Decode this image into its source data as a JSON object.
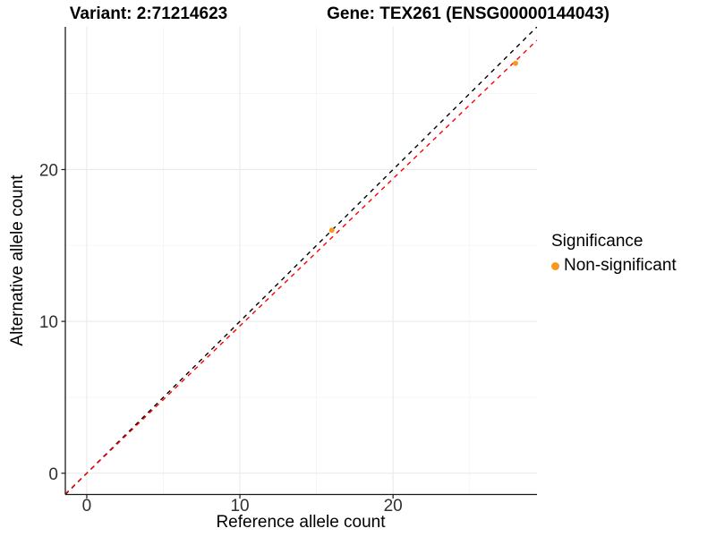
{
  "chart_data": {
    "type": "scatter",
    "title_left": "Variant: 2:71214623",
    "title_right": "Gene: TEX261 (ENSG00000144043)",
    "xlabel": "Reference allele count",
    "ylabel": "Alternative allele count",
    "xlim": [
      -1.4,
      29.4
    ],
    "ylim": [
      -1.4,
      29.4
    ],
    "x_ticks": [
      0,
      10,
      20
    ],
    "y_ticks": [
      0,
      10,
      20
    ],
    "x_minor_ticks": [
      5,
      15,
      25
    ],
    "y_minor_ticks": [
      5,
      15,
      25
    ],
    "grid": true,
    "points": [
      {
        "x": 16,
        "y": 16,
        "series": "Non-significant"
      },
      {
        "x": 28,
        "y": 27,
        "series": "Non-significant"
      }
    ],
    "lines": [
      {
        "name": "identity-line",
        "slope": 1.0,
        "intercept": 0,
        "color": "#000000",
        "style": "dashed"
      },
      {
        "name": "fit-line",
        "slope": 0.97,
        "intercept": 0,
        "color": "#FF0000",
        "style": "dashed"
      }
    ],
    "legend": {
      "title": "Significance",
      "position": "right",
      "items": [
        {
          "label": "Non-significant",
          "color": "#F8981D"
        }
      ]
    },
    "colors": {
      "point": "#F8981D",
      "grid_major": "#E9E9E9",
      "grid_minor": "#F4F4F4",
      "axis_line": "#1A1A1A",
      "tick_label": "#303030"
    }
  }
}
